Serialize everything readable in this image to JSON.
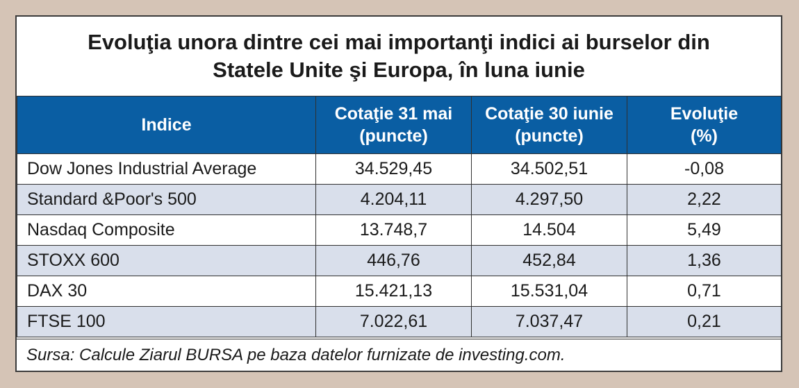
{
  "title": {
    "line1": "Evoluţia unora dintre cei mai importanţi indici ai burselor din",
    "line2": "Statele Unite şi Europa, în luna iunie"
  },
  "table": {
    "headers": [
      {
        "line1": "Indice",
        "line2": ""
      },
      {
        "line1": "Cotaţie 31 mai",
        "line2": "(puncte)"
      },
      {
        "line1": "Cotaţie 30 iunie",
        "line2": "(puncte)"
      },
      {
        "line1": "Evoluţie",
        "line2": "(%)"
      }
    ],
    "rows": [
      [
        "Dow Jones Industrial Average",
        "34.529,45",
        "34.502,51",
        "-0,08"
      ],
      [
        "Standard &Poor's 500",
        "4.204,11",
        "4.297,50",
        "2,22"
      ],
      [
        "Nasdaq Composite",
        "13.748,7",
        "14.504",
        "5,49"
      ],
      [
        "STOXX 600",
        "446,76",
        "452,84",
        "1,36"
      ],
      [
        "DAX 30",
        "15.421,13",
        "15.531,04",
        "0,71"
      ],
      [
        "FTSE 100",
        "7.022,61",
        "7.037,47",
        "0,21"
      ]
    ]
  },
  "source": "Sursa: Calcule Ziarul BURSA pe baza datelor furnizate de investing.com.",
  "colors": {
    "header_bg": "#0a5ea3",
    "alt_row_bg": "#d9dfeb",
    "page_bg": "#d5c4b6"
  }
}
